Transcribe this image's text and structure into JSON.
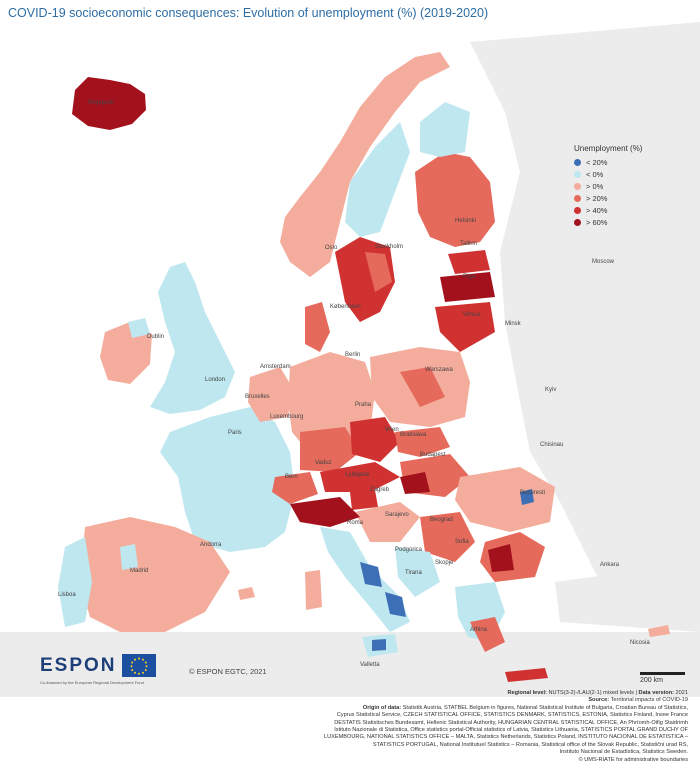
{
  "title": "COVID-19 socioeconomic consequences: Evolution of unemployment (%) (2019-2020)",
  "legend": {
    "title": "Unemployment (%)",
    "items": [
      {
        "label": "< 20%",
        "color": "#3d6fb6"
      },
      {
        "label": "< 0%",
        "color": "#bfe7f0"
      },
      {
        "label": "> 0%",
        "color": "#f4ad9c"
      },
      {
        "label": "> 20%",
        "color": "#e56a5b"
      },
      {
        "label": "> 40%",
        "color": "#d03232"
      },
      {
        "label": "> 60%",
        "color": "#a3111d"
      }
    ]
  },
  "cities": [
    "Reykjavik",
    "Oslo",
    "Stockholm",
    "Helsinki",
    "Tallinn",
    "Riga",
    "Vilnius",
    "Minsk",
    "Moscow",
    "Kyiv",
    "Chisinau",
    "Bucuresti",
    "Sofia",
    "Skopje",
    "Tirana",
    "Podgorica",
    "Beograd",
    "Sarajevo",
    "Zagreb",
    "Ljubljana",
    "Budapest",
    "Bratislava",
    "Wien",
    "Praha",
    "Warszawa",
    "Berlin",
    "København",
    "Amsterdam",
    "Bruxelles",
    "Luxembourg",
    "Paris",
    "London",
    "Dublin",
    "Bern",
    "Vaduz",
    "Roma",
    "Valletta",
    "Madrid",
    "Lisboa",
    "Andorra",
    "Athina",
    "Nicosia",
    "Ankara"
  ],
  "logo": {
    "espon": "ESPON",
    "tagline": "Co-financed by the European Regional Development Fund"
  },
  "copyright": "© ESPON EGTC, 2021",
  "scale": "200 km",
  "footer": {
    "level_label": "Regional level:",
    "level_value": "NUTS(3-2)-/LAU(2-1) mixed levels",
    "version_label": "Data version:",
    "version_value": "2021",
    "source_label": "Source:",
    "source_value": "Territorial impacts of COVID-19",
    "origin_label": "Origin of data:",
    "origin_lines": [
      "Statistik Austria, STATBEL Belgium in figures, National Statistical Institute of Bulgaria, Croatian Bureau of Statistics,",
      "Cyprus Statistical Service, CZECH STATISTICAL OFFICE, STATISTICS DENMARK, STATISTICS, ESTONIA, Statistics Finland, Insee France",
      "DESTATIS Statistisches Bundesamt, Hellenic Statistical Authority, HUNGARIAN CENTRAL STATISTICAL OFFICE, An Phríomh-Oifig Staidrimh",
      "Istituto Nazionale di Statistica, Office statistics portal-Official statistics of Latvia, Statistics Lithuania, STATISTICS PORTAL GRAND DUCHY OF",
      "LUXEMBOURG, NATIONAL STATISTICS OFFICE – MALTA, Statistics Netherlands, Statistics Poland, INSTITUTO NACIONAL DE ESTATISTICA –",
      "STATISTICS PORTUGAL, National Institutuel Statistics – Romania, Statistical office of the Slovak Republic, Statistični urad RS,",
      "Instituto Nacional de Estadística, Statistics Sweden.",
      "© UMS-RIATE for administrative boundaries"
    ]
  }
}
